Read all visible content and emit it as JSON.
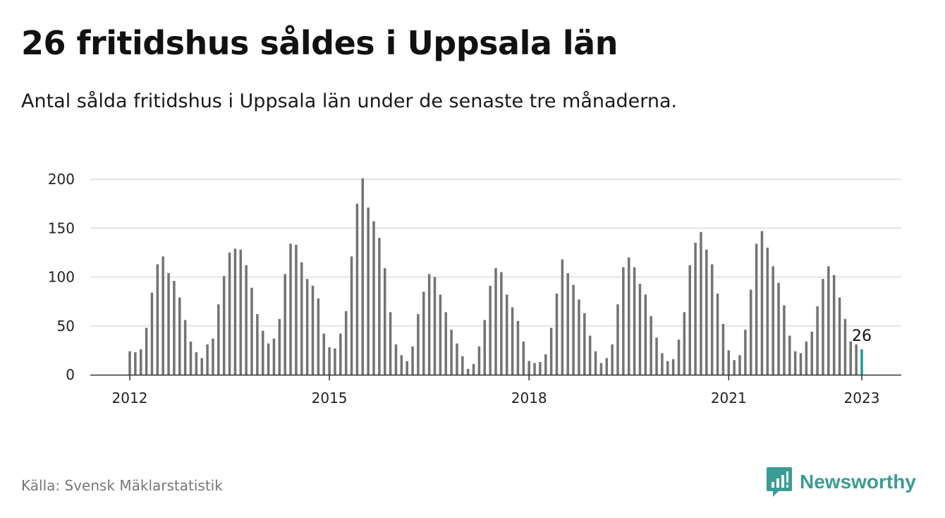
{
  "header": {
    "title": "26 fritidshus såldes i Uppsala län",
    "subtitle": "Antal sålda fritidshus i Uppsala län under de senaste tre månaderna."
  },
  "footer": {
    "source": "Källa: Svensk Mäklarstatistik",
    "brand_name": "Newsworthy"
  },
  "colors": {
    "bar": "#737373",
    "highlight": "#1a9e8f",
    "grid": "#dddddd",
    "axis": "#333333",
    "brand": "#3a9c95"
  },
  "chart_data": {
    "type": "bar",
    "title": "26 fritidshus såldes i Uppsala län",
    "subtitle": "Antal sålda fritidshus i Uppsala län under de senaste tre månaderna.",
    "xlabel": "",
    "ylabel": "",
    "ylim": [
      0,
      200
    ],
    "yticks": [
      0,
      50,
      100,
      150,
      200
    ],
    "xtick_labels": [
      "2012",
      "2015",
      "2018",
      "2021",
      "2023"
    ],
    "grid": "horizontal",
    "start_month": "2012-01",
    "end_month": "2023-01",
    "values": [
      24,
      23,
      26,
      48,
      84,
      113,
      121,
      104,
      96,
      79,
      56,
      34,
      23,
      17,
      31,
      37,
      72,
      101,
      125,
      129,
      128,
      112,
      89,
      62,
      45,
      32,
      37,
      57,
      103,
      134,
      133,
      115,
      98,
      91,
      78,
      42,
      28,
      27,
      42,
      65,
      121,
      175,
      201,
      171,
      157,
      140,
      109,
      64,
      31,
      20,
      14,
      29,
      62,
      85,
      103,
      100,
      82,
      64,
      46,
      32,
      19,
      6,
      11,
      29,
      56,
      91,
      109,
      105,
      82,
      69,
      55,
      34,
      14,
      12,
      13,
      21,
      48,
      83,
      118,
      104,
      92,
      77,
      63,
      40,
      24,
      12,
      17,
      31,
      72,
      110,
      120,
      110,
      93,
      82,
      60,
      38,
      22,
      14,
      16,
      36,
      64,
      112,
      135,
      146,
      128,
      113,
      83,
      52,
      25,
      15,
      20,
      46,
      87,
      134,
      147,
      130,
      111,
      94,
      71,
      40,
      24,
      22,
      34,
      44,
      70,
      98,
      111,
      102,
      79,
      57,
      34,
      31,
      26
    ],
    "highlight_last": true,
    "annotation": "26"
  }
}
